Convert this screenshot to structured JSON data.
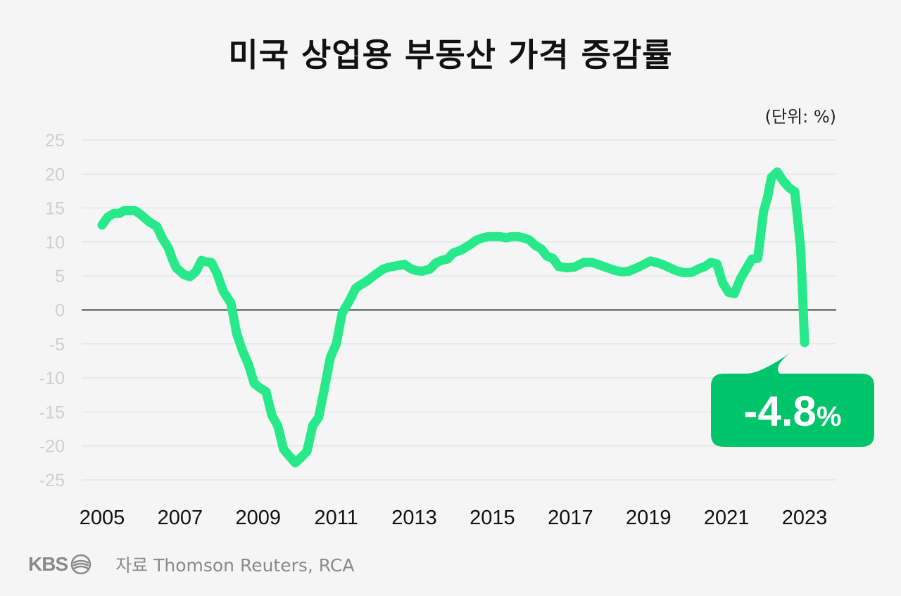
{
  "title": "미국 상업용 부동산 가격 증감률",
  "unit": "(단위: %)",
  "source": "자료 Thomson Reuters, RCA",
  "logo": {
    "text": "KBS",
    "icon": "kbs-logo-icon"
  },
  "callout": {
    "label": "-4.8",
    "suffix": "%",
    "color": "#00c46a"
  },
  "colors": {
    "line": "#27e98a",
    "grid": "#dcdcdc",
    "zero": "#000000",
    "tick": "#cfcfcf"
  },
  "chart_data": {
    "type": "line",
    "title": "미국 상업용 부동산 가격 증감률",
    "ylabel": "(단위: %)",
    "ylim": [
      -25,
      25
    ],
    "yticks": [
      25,
      20,
      15,
      10,
      5,
      0,
      -5,
      -10,
      -15,
      -20,
      -25
    ],
    "xlim": [
      2005,
      2023.7
    ],
    "xticks": [
      2005,
      2007,
      2009,
      2011,
      2013,
      2015,
      2017,
      2019,
      2021,
      2023
    ],
    "grid": true,
    "series": [
      {
        "name": "",
        "x": [
          2005.0,
          2005.15,
          2005.3,
          2005.45,
          2005.55,
          2005.7,
          2005.85,
          2006.0,
          2006.2,
          2006.4,
          2006.55,
          2006.7,
          2006.8,
          2006.9,
          2007.1,
          2007.25,
          2007.4,
          2007.55,
          2007.65,
          2007.8,
          2007.95,
          2008.1,
          2008.3,
          2008.45,
          2008.6,
          2008.75,
          2008.9,
          2009.05,
          2009.2,
          2009.35,
          2009.5,
          2009.65,
          2009.8,
          2009.95,
          2010.1,
          2010.25,
          2010.4,
          2010.55,
          2010.7,
          2010.85,
          2011.0,
          2011.15,
          2011.35,
          2011.5,
          2011.6,
          2011.8,
          2012.0,
          2012.2,
          2012.35,
          2012.55,
          2012.75,
          2012.9,
          2013.05,
          2013.2,
          2013.4,
          2013.55,
          2013.7,
          2013.85,
          2014.0,
          2014.2,
          2014.4,
          2014.6,
          2014.75,
          2014.9,
          2015.05,
          2015.2,
          2015.35,
          2015.5,
          2015.65,
          2015.8,
          2015.95,
          2016.1,
          2016.25,
          2016.4,
          2016.55,
          2016.7,
          2016.9,
          2017.1,
          2017.35,
          2017.55,
          2017.75,
          2017.95,
          2018.15,
          2018.35,
          2018.5,
          2018.7,
          2018.85,
          2019.05,
          2019.25,
          2019.4,
          2019.55,
          2019.7,
          2019.9,
          2020.1,
          2020.3,
          2020.45,
          2020.6,
          2020.75,
          2020.9,
          2021.05,
          2021.2,
          2021.35,
          2021.5,
          2021.65,
          2021.8,
          2021.95,
          2022.05,
          2022.15,
          2022.3,
          2022.45,
          2022.6,
          2022.75,
          2022.9,
          2023.0
        ],
        "values": [
          12.5,
          13.7,
          14.2,
          14.2,
          14.6,
          14.6,
          14.6,
          14.0,
          13.0,
          12.3,
          10.5,
          9.1,
          7.5,
          6.2,
          5.2,
          4.9,
          5.6,
          7.3,
          7.1,
          7.0,
          5.3,
          2.8,
          1.0,
          -3.5,
          -6.0,
          -8.0,
          -10.8,
          -11.5,
          -12.0,
          -15.5,
          -17.0,
          -20.5,
          -21.5,
          -22.5,
          -21.7,
          -20.8,
          -17.0,
          -15.8,
          -11.5,
          -7.0,
          -5.0,
          -0.5,
          1.5,
          3.2,
          3.6,
          4.3,
          5.2,
          6.0,
          6.3,
          6.5,
          6.7,
          6.1,
          5.8,
          5.7,
          6.0,
          6.9,
          7.3,
          7.5,
          8.4,
          8.8,
          9.5,
          10.3,
          10.6,
          10.8,
          10.8,
          10.8,
          10.6,
          10.8,
          10.8,
          10.6,
          10.3,
          9.5,
          9.0,
          7.9,
          7.6,
          6.4,
          6.2,
          6.3,
          7.0,
          7.0,
          6.6,
          6.2,
          5.8,
          5.6,
          5.7,
          6.2,
          6.6,
          7.2,
          6.9,
          6.6,
          6.2,
          5.8,
          5.5,
          5.5,
          6.1,
          6.4,
          7.0,
          6.8,
          4.0,
          2.6,
          2.4,
          4.5,
          6.0,
          7.5,
          7.6,
          14.5,
          16.5,
          19.5,
          20.3,
          19.0,
          18.0,
          17.4,
          9.0,
          -4.8
        ]
      }
    ],
    "annotations": [
      {
        "x": 2023.0,
        "y": -4.8,
        "text": "-4.8%"
      }
    ]
  }
}
